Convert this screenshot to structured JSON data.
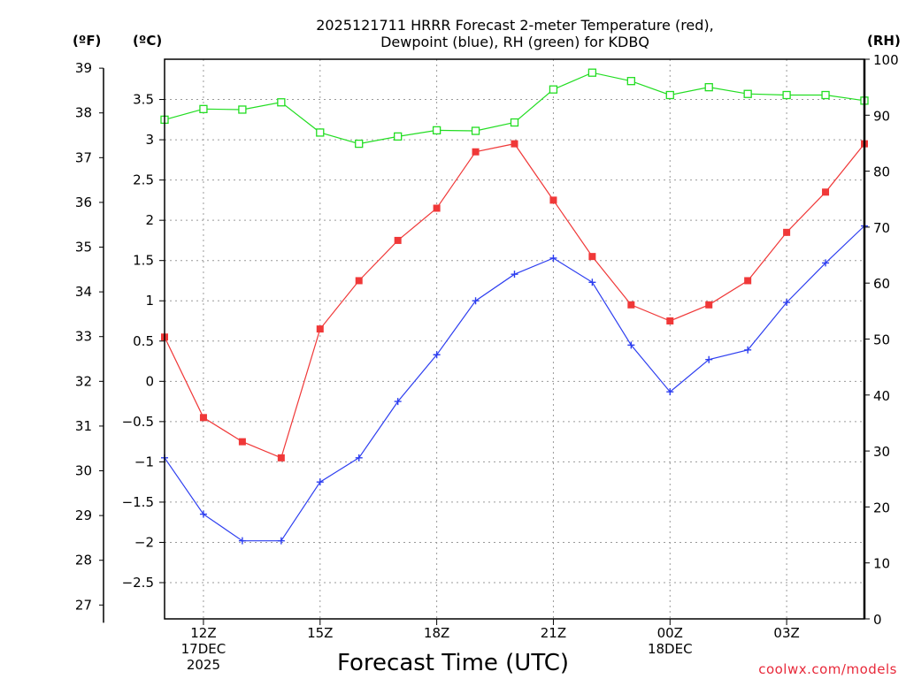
{
  "chart_data": {
    "type": "line",
    "title_line1": "2025121711 HRRR Forecast 2-meter Temperature (red),",
    "title_line2": "Dewpoint (blue), RH (green) for KDBQ",
    "xlabel": "Forecast Time (UTC)",
    "credit": "coolwx.com/models",
    "units": {
      "fahrenheit": "(ºF)",
      "celsius": "(ºC)",
      "rh": "(RH)"
    },
    "hours": [
      11,
      12,
      13,
      14,
      15,
      16,
      17,
      18,
      19,
      20,
      21,
      22,
      23,
      24,
      25,
      26,
      27,
      28,
      29
    ],
    "x_range": [
      11,
      29
    ],
    "x_ticks": [
      {
        "hour": 12,
        "lines": [
          "12Z",
          "17DEC",
          "2025"
        ]
      },
      {
        "hour": 15,
        "lines": [
          "15Z"
        ]
      },
      {
        "hour": 18,
        "lines": [
          "18Z"
        ]
      },
      {
        "hour": 21,
        "lines": [
          "21Z"
        ]
      },
      {
        "hour": 24,
        "lines": [
          "00Z",
          "18DEC"
        ]
      },
      {
        "hour": 27,
        "lines": [
          "03Z"
        ]
      }
    ],
    "celsius_axis": {
      "range": [
        -2.95,
        4.0
      ],
      "ticks": [
        -2.5,
        -2,
        -1.5,
        -1,
        -0.5,
        0,
        0.5,
        1,
        1.5,
        2,
        2.5,
        3,
        3.5
      ],
      "tick_labels": [
        "−2.5",
        "−2",
        "−1.5",
        "−1",
        "−0.5",
        "0",
        "0.5",
        "1",
        "1.5",
        "2",
        "2.5",
        "3",
        "3.5"
      ]
    },
    "fahrenheit_axis": {
      "ticks": [
        27,
        28,
        29,
        30,
        31,
        32,
        33,
        34,
        35,
        36,
        37,
        38,
        39
      ],
      "tick_labels": [
        "27",
        "28",
        "29",
        "30",
        "31",
        "32",
        "33",
        "34",
        "35",
        "36",
        "37",
        "38",
        "39"
      ]
    },
    "rh_axis": {
      "range": [
        0,
        100
      ],
      "ticks": [
        0,
        10,
        20,
        30,
        40,
        50,
        60,
        70,
        80,
        90,
        100
      ],
      "tick_labels": [
        "0",
        "10",
        "20",
        "30",
        "40",
        "50",
        "60",
        "70",
        "80",
        "90",
        "100"
      ]
    },
    "series": [
      {
        "name": "Temperature",
        "axis": "celsius",
        "color": "#f03838",
        "marker": "filled-square",
        "values": [
          0.55,
          -0.45,
          -0.75,
          -0.95,
          0.65,
          1.25,
          1.75,
          2.15,
          2.85,
          2.95,
          2.25,
          1.55,
          0.95,
          0.75,
          0.95,
          1.25,
          1.85,
          2.35,
          2.95
        ]
      },
      {
        "name": "Dewpoint",
        "axis": "celsius",
        "color": "#2d3ef0",
        "marker": "plus",
        "values": [
          -0.95,
          -1.65,
          -1.98,
          -1.98,
          -1.25,
          -0.95,
          -0.25,
          0.33,
          1.0,
          1.33,
          1.53,
          1.23,
          0.45,
          -0.13,
          0.27,
          0.39,
          0.98,
          1.47,
          1.93
        ]
      },
      {
        "name": "RH",
        "axis": "rh",
        "color": "#22dd22",
        "marker": "open-square",
        "values": [
          89.2,
          91.1,
          91.0,
          92.3,
          86.9,
          84.9,
          86.2,
          87.3,
          87.2,
          88.7,
          94.6,
          97.6,
          96.1,
          93.6,
          95.0,
          93.8,
          93.6,
          93.6,
          92.6
        ]
      }
    ]
  }
}
